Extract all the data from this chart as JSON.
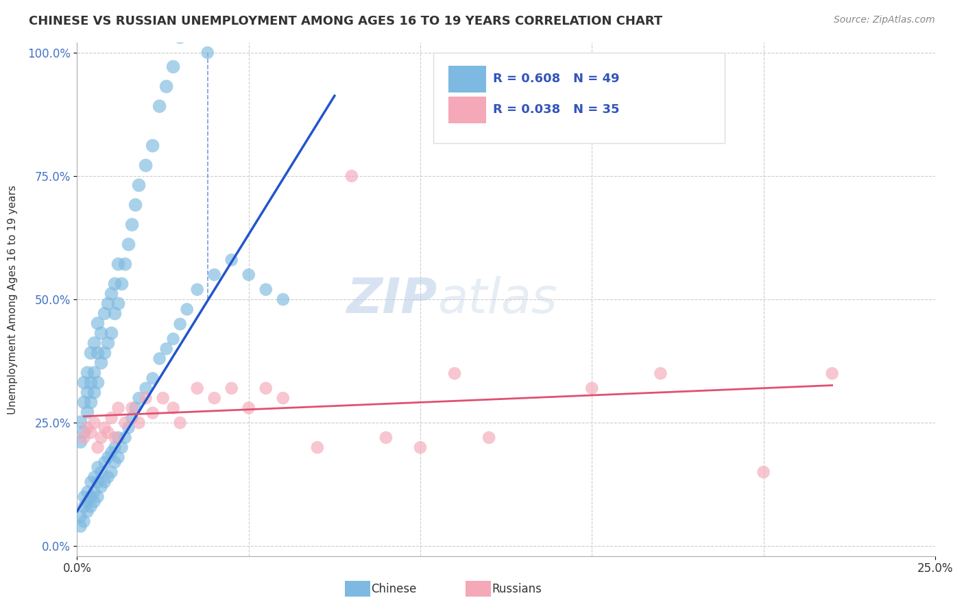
{
  "title": "CHINESE VS RUSSIAN UNEMPLOYMENT AMONG AGES 16 TO 19 YEARS CORRELATION CHART",
  "source_text": "Source: ZipAtlas.com",
  "ylabel_text": "Unemployment Among Ages 16 to 19 years",
  "xlim": [
    0.0,
    0.25
  ],
  "ylim": [
    -0.02,
    1.02
  ],
  "ytick_vals": [
    0.0,
    0.25,
    0.5,
    0.75,
    1.0
  ],
  "ytick_labels": [
    "0.0%",
    "25.0%",
    "50.0%",
    "75.0%",
    "100.0%"
  ],
  "xtick_vals": [
    0.0,
    0.25
  ],
  "xtick_labels": [
    "0.0%",
    "25.0%"
  ],
  "chinese_color": "#7db9e0",
  "russian_color": "#f4a8b8",
  "trendline_chinese_color": "#2255cc",
  "trendline_russian_color": "#e05070",
  "background_color": "#ffffff",
  "grid_color": "#cccccc",
  "chinese_x": [
    0.001,
    0.001,
    0.002,
    0.002,
    0.002,
    0.003,
    0.003,
    0.003,
    0.004,
    0.004,
    0.004,
    0.005,
    0.005,
    0.005,
    0.006,
    0.006,
    0.006,
    0.007,
    0.007,
    0.008,
    0.008,
    0.009,
    0.009,
    0.01,
    0.01,
    0.011,
    0.011,
    0.012,
    0.012,
    0.013,
    0.014,
    0.015,
    0.016,
    0.017,
    0.018,
    0.02,
    0.022,
    0.024,
    0.026,
    0.028,
    0.03,
    0.032,
    0.035,
    0.04,
    0.045,
    0.05,
    0.055,
    0.06,
    0.038
  ],
  "chinese_y": [
    0.04,
    0.06,
    0.05,
    0.08,
    0.1,
    0.07,
    0.09,
    0.11,
    0.08,
    0.1,
    0.13,
    0.09,
    0.11,
    0.14,
    0.1,
    0.13,
    0.16,
    0.12,
    0.15,
    0.13,
    0.17,
    0.14,
    0.18,
    0.15,
    0.19,
    0.17,
    0.2,
    0.18,
    0.22,
    0.2,
    0.22,
    0.24,
    0.26,
    0.28,
    0.3,
    0.32,
    0.34,
    0.38,
    0.4,
    0.42,
    0.45,
    0.48,
    0.52,
    0.55,
    0.58,
    0.55,
    0.52,
    0.5,
    1.0
  ],
  "russian_x": [
    0.002,
    0.003,
    0.004,
    0.005,
    0.006,
    0.007,
    0.008,
    0.009,
    0.01,
    0.011,
    0.012,
    0.014,
    0.016,
    0.018,
    0.02,
    0.022,
    0.025,
    0.028,
    0.03,
    0.035,
    0.04,
    0.045,
    0.05,
    0.055,
    0.06,
    0.07,
    0.08,
    0.09,
    0.1,
    0.11,
    0.12,
    0.15,
    0.17,
    0.2,
    0.22
  ],
  "russian_y": [
    0.22,
    0.24,
    0.23,
    0.25,
    0.2,
    0.22,
    0.24,
    0.23,
    0.26,
    0.22,
    0.28,
    0.25,
    0.28,
    0.25,
    0.3,
    0.27,
    0.3,
    0.28,
    0.25,
    0.32,
    0.3,
    0.32,
    0.28,
    0.32,
    0.3,
    0.2,
    0.75,
    0.22,
    0.2,
    0.35,
    0.22,
    0.32,
    0.35,
    0.15,
    0.35
  ]
}
